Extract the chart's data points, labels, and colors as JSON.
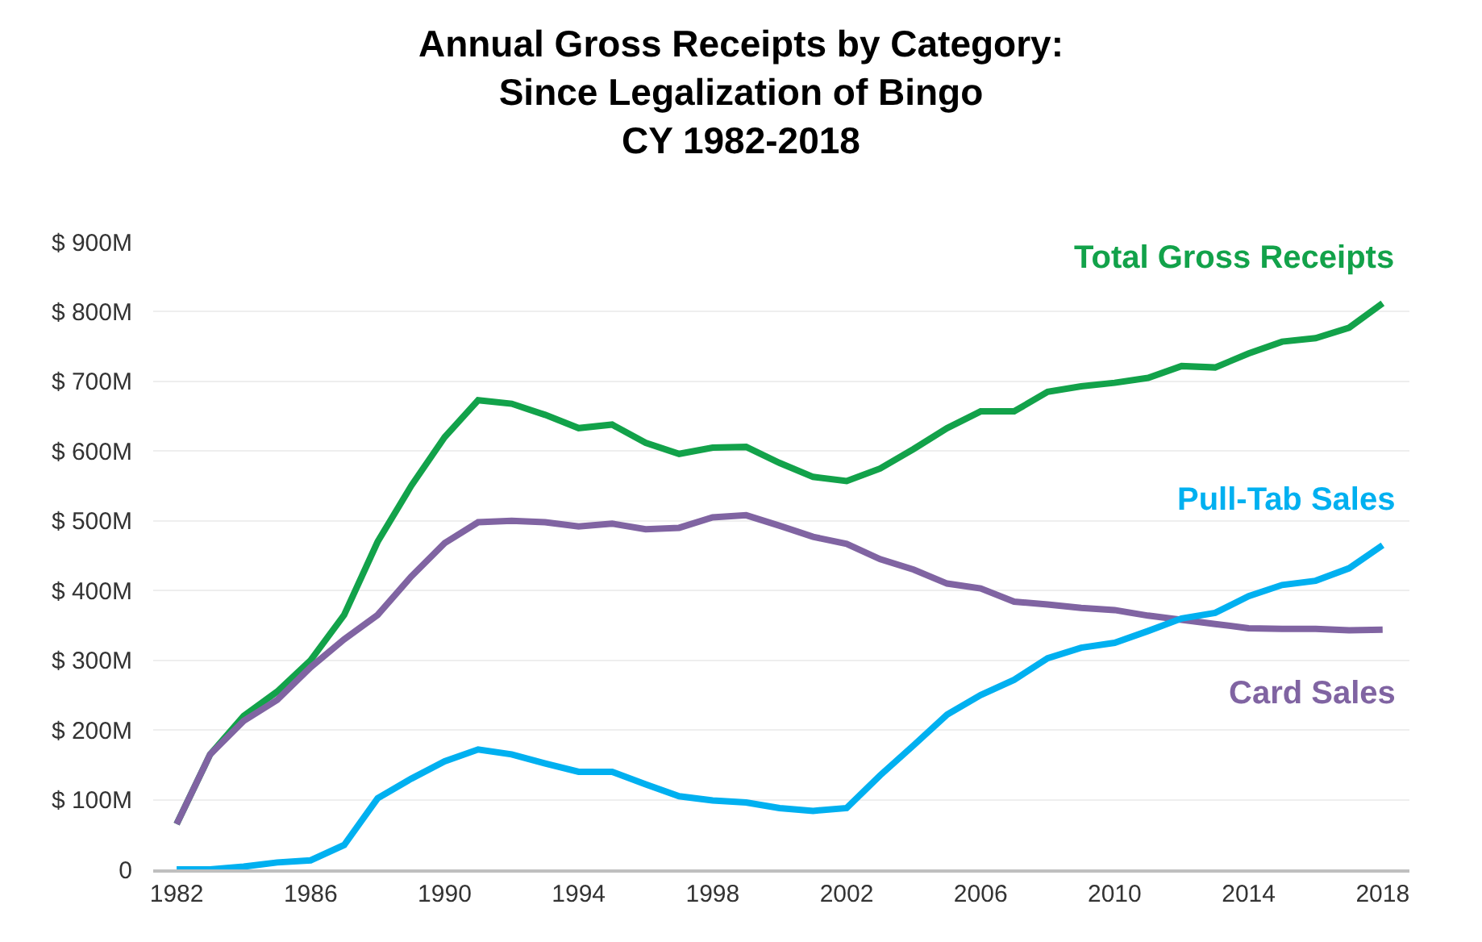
{
  "chart_data": {
    "type": "line",
    "title": "Annual Gross Receipts by Category:\nSince Legalization of Bingo\nCY 1982-2018",
    "x": [
      1982,
      1983,
      1984,
      1985,
      1986,
      1987,
      1988,
      1989,
      1990,
      1991,
      1992,
      1993,
      1994,
      1995,
      1996,
      1997,
      1998,
      1999,
      2000,
      2001,
      2002,
      2003,
      2004,
      2005,
      2006,
      2007,
      2008,
      2009,
      2010,
      2011,
      2012,
      2013,
      2014,
      2015,
      2016,
      2017,
      2018
    ],
    "series": [
      {
        "name": "Total Gross Receipts",
        "color": "#12a24a",
        "values": [
          65,
          165,
          220,
          255,
          300,
          365,
          470,
          550,
          620,
          673,
          668,
          652,
          633,
          638,
          612,
          596,
          605,
          606,
          583,
          563,
          557,
          575,
          603,
          633,
          657,
          657,
          685,
          693,
          698,
          705,
          722,
          720,
          740,
          757,
          762,
          777,
          812
        ]
      },
      {
        "name": "Card Sales",
        "color": "#8064a2",
        "values": [
          65,
          165,
          213,
          243,
          290,
          330,
          365,
          420,
          468,
          498,
          500,
          498,
          492,
          496,
          488,
          490,
          505,
          508,
          493,
          477,
          467,
          445,
          430,
          410,
          403,
          384,
          380,
          375,
          372,
          364,
          358,
          352,
          346,
          345,
          345,
          343,
          344
        ]
      },
      {
        "name": "Pull-Tab Sales",
        "color": "#00b0f0",
        "values": [
          0,
          0,
          4,
          10,
          13,
          35,
          102,
          130,
          155,
          172,
          165,
          152,
          140,
          140,
          122,
          105,
          99,
          96,
          88,
          84,
          88,
          135,
          178,
          222,
          250,
          272,
          303,
          318,
          325,
          342,
          360,
          368,
          392,
          408,
          414,
          432,
          465
        ]
      }
    ],
    "xlim": [
      1981.3,
      2018.8
    ],
    "xticks": [
      1982,
      1986,
      1990,
      1994,
      1998,
      2002,
      2006,
      2010,
      2014,
      2018
    ],
    "ylim": [
      0,
      900
    ],
    "yticks": [
      {
        "value": 0,
        "label": "0"
      },
      {
        "value": 100,
        "label": "$ 100M"
      },
      {
        "value": 200,
        "label": "$ 200M"
      },
      {
        "value": 300,
        "label": "$ 300M"
      },
      {
        "value": 400,
        "label": "$ 400M"
      },
      {
        "value": 500,
        "label": "$ 500M"
      },
      {
        "value": 600,
        "label": "$ 600M"
      },
      {
        "value": 700,
        "label": "$ 700M"
      },
      {
        "value": 800,
        "label": "$ 800M"
      },
      {
        "value": 900,
        "label": "$ 900M"
      }
    ],
    "grid": "y",
    "legend": false,
    "marker": "none",
    "line_style": "solid"
  }
}
